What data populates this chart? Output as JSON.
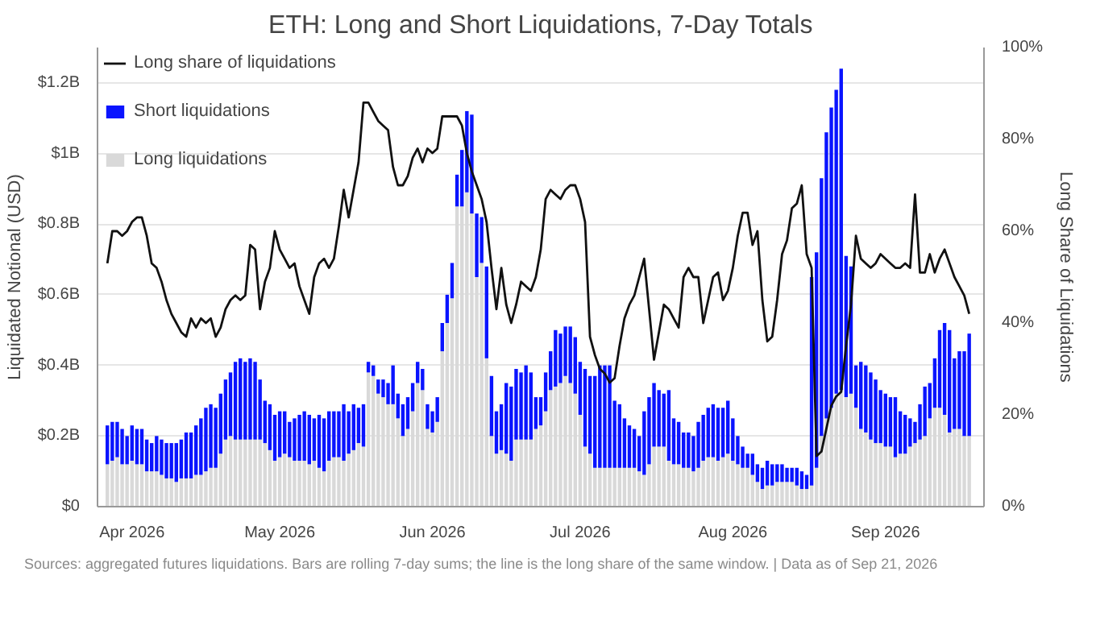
{
  "chart_data": {
    "type": "bar",
    "stacked": true,
    "title": "ETH: Long and Short Liquidations, 7-Day Totals",
    "ylabel": "Liquidated Notional (USD)",
    "y2label": "Long Share of Liquidations",
    "annotations": [
      "Sources: aggregated futures liquidations. Bars are rolling 7-day sums; the line is the long share of the same window. | Data as of Sep 21, 2026"
    ],
    "x": [
      "2026-03-27",
      "2026-03-28",
      "2026-03-29",
      "2026-03-30",
      "2026-03-31",
      "2026-04-01",
      "2026-04-02",
      "2026-04-03",
      "2026-04-04",
      "2026-04-05",
      "2026-04-06",
      "2026-04-07",
      "2026-04-08",
      "2026-04-09",
      "2026-04-10",
      "2026-04-11",
      "2026-04-12",
      "2026-04-13",
      "2026-04-14",
      "2026-04-15",
      "2026-04-16",
      "2026-04-17",
      "2026-04-18",
      "2026-04-19",
      "2026-04-20",
      "2026-04-21",
      "2026-04-22",
      "2026-04-23",
      "2026-04-24",
      "2026-04-25",
      "2026-04-26",
      "2026-04-27",
      "2026-04-28",
      "2026-04-29",
      "2026-04-30",
      "2026-05-01",
      "2026-05-02",
      "2026-05-03",
      "2026-05-04",
      "2026-05-05",
      "2026-05-06",
      "2026-05-07",
      "2026-05-08",
      "2026-05-09",
      "2026-05-10",
      "2026-05-11",
      "2026-05-12",
      "2026-05-13",
      "2026-05-14",
      "2026-05-15",
      "2026-05-16",
      "2026-05-17",
      "2026-05-18",
      "2026-05-19",
      "2026-05-20",
      "2026-05-21",
      "2026-05-22",
      "2026-05-23",
      "2026-05-24",
      "2026-05-25",
      "2026-05-26",
      "2026-05-27",
      "2026-05-28",
      "2026-05-29",
      "2026-05-30",
      "2026-05-31",
      "2026-06-01",
      "2026-06-02",
      "2026-06-03",
      "2026-06-04",
      "2026-06-05",
      "2026-06-06",
      "2026-06-07",
      "2026-06-08",
      "2026-06-09",
      "2026-06-10",
      "2026-06-11",
      "2026-06-12",
      "2026-06-13",
      "2026-06-14",
      "2026-06-15",
      "2026-06-16",
      "2026-06-17",
      "2026-06-18",
      "2026-06-19",
      "2026-06-20",
      "2026-06-21",
      "2026-06-22",
      "2026-06-23",
      "2026-06-24",
      "2026-06-25",
      "2026-06-26",
      "2026-06-27",
      "2026-06-28",
      "2026-06-29",
      "2026-06-30",
      "2026-07-01",
      "2026-07-02",
      "2026-07-03",
      "2026-07-04",
      "2026-07-05",
      "2026-07-06",
      "2026-07-07",
      "2026-07-08",
      "2026-07-09",
      "2026-07-10",
      "2026-07-11",
      "2026-07-12",
      "2026-07-13",
      "2026-07-14",
      "2026-07-15",
      "2026-07-16",
      "2026-07-17",
      "2026-07-18",
      "2026-07-19",
      "2026-07-20",
      "2026-07-21",
      "2026-07-22",
      "2026-07-23",
      "2026-07-24",
      "2026-07-25",
      "2026-07-26",
      "2026-07-27",
      "2026-07-28",
      "2026-07-29",
      "2026-07-30",
      "2026-07-31",
      "2026-08-01",
      "2026-08-02",
      "2026-08-03",
      "2026-08-04",
      "2026-08-05",
      "2026-08-06",
      "2026-08-07",
      "2026-08-08",
      "2026-08-09",
      "2026-08-10",
      "2026-08-11",
      "2026-08-12",
      "2026-08-13",
      "2026-08-14",
      "2026-08-15",
      "2026-08-16",
      "2026-08-17",
      "2026-08-18",
      "2026-08-19",
      "2026-08-20",
      "2026-08-21",
      "2026-08-22",
      "2026-08-23",
      "2026-08-24",
      "2026-08-25",
      "2026-08-26",
      "2026-08-27",
      "2026-08-28",
      "2026-08-29",
      "2026-08-30",
      "2026-08-31",
      "2026-09-01",
      "2026-09-02",
      "2026-09-03",
      "2026-09-04",
      "2026-09-05",
      "2026-09-06",
      "2026-09-07",
      "2026-09-08",
      "2026-09-09",
      "2026-09-10",
      "2026-09-11",
      "2026-09-12",
      "2026-09-13",
      "2026-09-14",
      "2026-09-15",
      "2026-09-16",
      "2026-09-17",
      "2026-09-18"
    ],
    "series": [
      {
        "name": "Long liquidations",
        "color": "#d9d9d9",
        "values": [
          0.12,
          0.13,
          0.14,
          0.12,
          0.12,
          0.13,
          0.12,
          0.12,
          0.1,
          0.1,
          0.1,
          0.09,
          0.08,
          0.08,
          0.07,
          0.08,
          0.08,
          0.08,
          0.09,
          0.09,
          0.1,
          0.11,
          0.11,
          0.15,
          0.19,
          0.2,
          0.19,
          0.19,
          0.19,
          0.19,
          0.19,
          0.19,
          0.18,
          0.16,
          0.13,
          0.14,
          0.15,
          0.14,
          0.13,
          0.13,
          0.13,
          0.12,
          0.13,
          0.11,
          0.1,
          0.13,
          0.14,
          0.14,
          0.13,
          0.15,
          0.16,
          0.18,
          0.17,
          0.38,
          0.37,
          0.32,
          0.31,
          0.29,
          0.29,
          0.25,
          0.2,
          0.22,
          0.27,
          0.35,
          0.33,
          0.22,
          0.21,
          0.24,
          0.44,
          0.52,
          0.59,
          0.85,
          0.85,
          0.89,
          0.83,
          0.65,
          0.69,
          0.42,
          0.2,
          0.15,
          0.16,
          0.15,
          0.13,
          0.19,
          0.19,
          0.19,
          0.19,
          0.22,
          0.23,
          0.27,
          0.33,
          0.34,
          0.35,
          0.37,
          0.35,
          0.32,
          0.26,
          0.17,
          0.15,
          0.11,
          0.11,
          0.11,
          0.11,
          0.11,
          0.11,
          0.11,
          0.11,
          0.11,
          0.1,
          0.09,
          0.12,
          0.17,
          0.17,
          0.17,
          0.13,
          0.12,
          0.12,
          0.11,
          0.11,
          0.1,
          0.11,
          0.13,
          0.14,
          0.14,
          0.13,
          0.14,
          0.15,
          0.13,
          0.12,
          0.11,
          0.11,
          0.09,
          0.07,
          0.05,
          0.06,
          0.06,
          0.07,
          0.07,
          0.07,
          0.07,
          0.06,
          0.05,
          0.05,
          0.06,
          0.11,
          0.2,
          0.25,
          0.28,
          0.32,
          0.33,
          0.31,
          0.32,
          0.28,
          0.22,
          0.21,
          0.19,
          0.18,
          0.18,
          0.17,
          0.17,
          0.14,
          0.15,
          0.15,
          0.17,
          0.18,
          0.19,
          0.2,
          0.25,
          0.28,
          0.28,
          0.26,
          0.21,
          0.22,
          0.22,
          0.2,
          0.2
        ]
      },
      {
        "name": "Short liquidations",
        "color": "#0a14ff",
        "values": [
          0.11,
          0.11,
          0.1,
          0.1,
          0.08,
          0.1,
          0.1,
          0.1,
          0.09,
          0.08,
          0.1,
          0.1,
          0.1,
          0.1,
          0.11,
          0.11,
          0.13,
          0.13,
          0.14,
          0.16,
          0.18,
          0.18,
          0.17,
          0.17,
          0.17,
          0.18,
          0.22,
          0.23,
          0.22,
          0.23,
          0.22,
          0.17,
          0.12,
          0.13,
          0.13,
          0.13,
          0.12,
          0.1,
          0.12,
          0.13,
          0.14,
          0.14,
          0.12,
          0.15,
          0.15,
          0.14,
          0.13,
          0.13,
          0.16,
          0.12,
          0.13,
          0.1,
          0.12,
          0.03,
          0.03,
          0.04,
          0.05,
          0.06,
          0.11,
          0.07,
          0.09,
          0.09,
          0.08,
          0.06,
          0.06,
          0.07,
          0.06,
          0.07,
          0.08,
          0.08,
          0.1,
          0.09,
          0.16,
          0.23,
          0.28,
          0.18,
          0.13,
          0.26,
          0.17,
          0.12,
          0.13,
          0.2,
          0.21,
          0.2,
          0.19,
          0.21,
          0.19,
          0.09,
          0.08,
          0.11,
          0.11,
          0.16,
          0.14,
          0.14,
          0.16,
          0.16,
          0.15,
          0.22,
          0.22,
          0.26,
          0.29,
          0.29,
          0.29,
          0.19,
          0.18,
          0.14,
          0.12,
          0.11,
          0.1,
          0.18,
          0.19,
          0.18,
          0.16,
          0.15,
          0.2,
          0.13,
          0.12,
          0.1,
          0.1,
          0.1,
          0.13,
          0.13,
          0.14,
          0.15,
          0.15,
          0.14,
          0.15,
          0.12,
          0.08,
          0.06,
          0.04,
          0.06,
          0.05,
          0.06,
          0.07,
          0.06,
          0.05,
          0.05,
          0.04,
          0.04,
          0.05,
          0.05,
          0.04,
          0.59,
          0.61,
          0.73,
          0.81,
          0.85,
          0.86,
          0.91,
          0.4,
          0.36,
          0.12,
          0.19,
          0.19,
          0.19,
          0.18,
          0.15,
          0.15,
          0.14,
          0.17,
          0.12,
          0.11,
          0.08,
          0.06,
          0.1,
          0.14,
          0.1,
          0.14,
          0.22,
          0.26,
          0.29,
          0.2,
          0.22,
          0.24,
          0.29
        ]
      },
      {
        "name": "Long share of liquidations",
        "type": "line",
        "axis": "y2",
        "color": "#111111",
        "values": [
          53,
          60,
          60,
          59,
          60,
          62,
          63,
          63,
          59,
          53,
          52,
          49,
          45,
          42,
          40,
          38,
          37,
          41,
          39,
          41,
          40,
          41,
          37,
          39,
          43,
          45,
          46,
          45,
          46,
          57,
          56,
          43,
          49,
          52,
          60,
          56,
          54,
          52,
          53,
          48,
          45,
          42,
          50,
          53,
          54,
          52,
          54,
          61,
          69,
          63,
          69,
          75,
          88,
          88,
          86,
          84,
          83,
          82,
          74,
          70,
          70,
          72,
          76,
          78,
          75,
          78,
          77,
          78,
          85,
          85,
          85,
          85,
          83,
          77,
          73,
          70,
          67,
          62,
          52,
          43,
          52,
          44,
          40,
          44,
          49,
          48,
          47,
          50,
          56,
          67,
          69,
          68,
          67,
          69,
          70,
          70,
          67,
          62,
          37,
          33,
          30,
          29,
          27,
          28,
          35,
          41,
          44,
          46,
          50,
          54,
          43,
          32,
          38,
          44,
          43,
          41,
          39,
          50,
          52,
          50,
          50,
          40,
          45,
          50,
          51,
          45,
          47,
          52,
          59,
          64,
          64,
          57,
          60,
          45,
          36,
          37,
          45,
          55,
          58,
          65,
          66,
          70,
          55,
          52,
          11,
          12,
          17,
          22,
          24,
          25,
          35,
          44,
          59,
          54,
          53,
          52,
          53,
          55,
          54,
          53,
          52,
          52,
          53,
          52,
          68,
          51,
          51,
          55,
          51,
          54,
          56,
          53,
          50,
          48,
          46,
          42
        ]
      }
    ],
    "xlim": [
      "2026-03-25",
      "2026-09-21"
    ],
    "xticks": [
      {
        "value": "2026-04-01",
        "label": "Apr 2026"
      },
      {
        "value": "2026-05-01",
        "label": "May 2026"
      },
      {
        "value": "2026-06-01",
        "label": "Jun 2026"
      },
      {
        "value": "2026-07-01",
        "label": "Jul 2026"
      },
      {
        "value": "2026-08-01",
        "label": "Aug 2026"
      },
      {
        "value": "2026-09-01",
        "label": "Sep 2026"
      }
    ],
    "ylim": [
      0,
      1.3
    ],
    "yticks": [
      {
        "value": 0,
        "label": "$0"
      },
      {
        "value": 0.2,
        "label": "$0.2B"
      },
      {
        "value": 0.4,
        "label": "$0.4B"
      },
      {
        "value": 0.6,
        "label": "$0.6B"
      },
      {
        "value": 0.8,
        "label": "$0.8B"
      },
      {
        "value": 1,
        "label": "$1B"
      },
      {
        "value": 1.2,
        "label": "$1.2B"
      }
    ],
    "y2lim": [
      0,
      100
    ],
    "y2ticks": [
      {
        "value": 0,
        "label": "0%"
      },
      {
        "value": 20,
        "label": "20%"
      },
      {
        "value": 40,
        "label": "40%"
      },
      {
        "value": 60,
        "label": "60%"
      },
      {
        "value": 80,
        "label": "80%"
      },
      {
        "value": 100,
        "label": "100%"
      }
    ],
    "grid": "y",
    "legend": "top left"
  }
}
